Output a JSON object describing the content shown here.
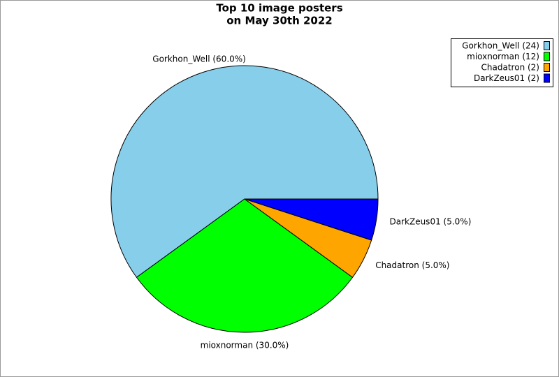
{
  "chart_data": {
    "type": "pie",
    "title": [
      "Top 10 image posters",
      "on May 30th 2022"
    ],
    "categories": [
      "Gorkhon_Well",
      "mioxnorman",
      "Chadatron",
      "DarkZeus01"
    ],
    "values": [
      60,
      30,
      5,
      5
    ],
    "value_labels": [
      "Gorkhon_Well (60.0%)",
      "mioxnorman (30.0%)",
      "Chadatron (5.0%)",
      "DarkZeus01 (5.0%)"
    ],
    "legend_labels": [
      "Gorkhon_Well (24)",
      "mioxnorman (12)",
      "Chadatron (2)",
      "DarkZeus01 (2)"
    ],
    "colors": [
      "#87ceeb",
      "#00ff00",
      "#ffa500",
      "#0000ff"
    ],
    "legend": "upper right"
  }
}
